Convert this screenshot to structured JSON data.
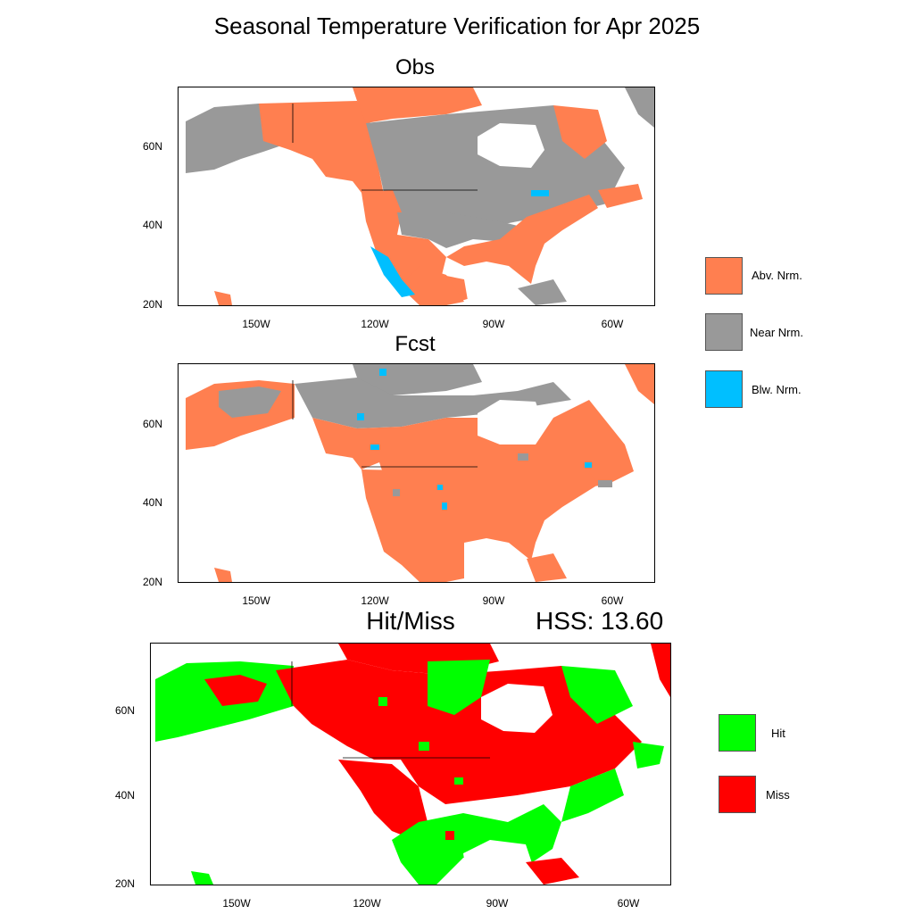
{
  "title": "Seasonal Temperature Verification for Apr 2025",
  "panels": {
    "obs": {
      "title": "Obs"
    },
    "fcst": {
      "title": "Fcst"
    },
    "hitmiss": {
      "title": "Hit/Miss",
      "score": "HSS: 13.60"
    }
  },
  "axes": {
    "lat_labels": [
      "60N",
      "40N",
      "20N"
    ],
    "lon_labels": [
      "150W",
      "120W",
      "90W",
      "60W"
    ]
  },
  "legend_top": [
    {
      "label": "Abv. Nrm.",
      "color": "#ff7f50"
    },
    {
      "label": "Near Nrm.",
      "color": "#999999"
    },
    {
      "label": "Blw. Nrm.",
      "color": "#00bfff"
    }
  ],
  "legend_bottom": [
    {
      "label": "Hit",
      "color": "#00ff00"
    },
    {
      "label": "Miss",
      "color": "#ff0000"
    }
  ],
  "colors": {
    "coast": "#000000",
    "no_data": "#ffffff"
  }
}
